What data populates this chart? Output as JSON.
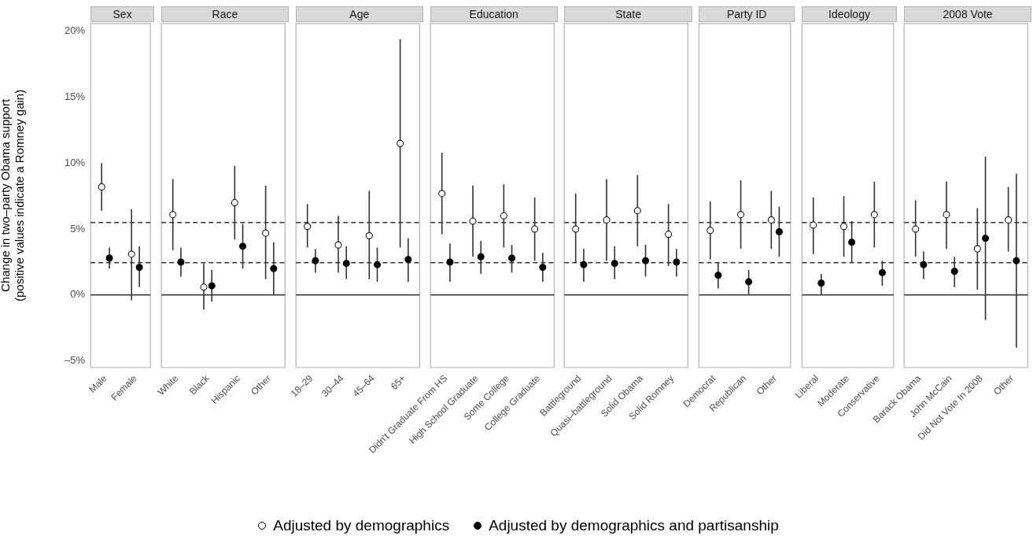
{
  "chart_data": [
    {
      "type": "scatter",
      "title": "Sex",
      "ylabel": "Change in two–party Obama support\n(positive values indicate a Romney gain)",
      "categories": [
        "Male",
        "Female"
      ],
      "marker": "circle",
      "legend": "bottom",
      "ylim": [
        -5.5,
        20.6
      ],
      "yticks": [
        {
          "value": -5,
          "label": "–5%"
        },
        {
          "value": 0,
          "label": "0%"
        },
        {
          "value": 5,
          "label": "5%"
        },
        {
          "value": 10,
          "label": "10%"
        },
        {
          "value": 15,
          "label": "15%"
        },
        {
          "value": 20,
          "label": "20%"
        }
      ],
      "ref_lines": [
        {
          "axis": "y",
          "value": 0,
          "line_style": "solid"
        },
        {
          "axis": "y",
          "value": 5.5,
          "line_style": "dashed"
        },
        {
          "axis": "y",
          "value": 2.45,
          "line_style": "dashed"
        }
      ],
      "series": [
        {
          "name": "Adjusted by demographics",
          "color": "#ffffff",
          "values": [
            8.2,
            3.1
          ],
          "errors": [
            [
              6.4,
              10.0
            ],
            [
              -0.4,
              6.5
            ]
          ]
        },
        {
          "name": "Adjusted by demographics and partisanship",
          "color": "#000000",
          "values": [
            2.8,
            2.1
          ],
          "errors": [
            [
              2.0,
              3.6
            ],
            [
              0.6,
              3.7
            ]
          ]
        }
      ]
    },
    {
      "type": "scatter",
      "title": "Race",
      "categories": [
        "White",
        "Black",
        "Hispanic",
        "Other"
      ],
      "marker": "circle",
      "tick_labels": "x",
      "ylim": [
        -5.5,
        20.6
      ],
      "ref_lines": [
        {
          "axis": "y",
          "value": 0,
          "line_style": "solid"
        },
        {
          "axis": "y",
          "value": 5.5,
          "line_style": "dashed"
        },
        {
          "axis": "y",
          "value": 2.45,
          "line_style": "dashed"
        }
      ],
      "series": [
        {
          "color": "#ffffff",
          "values": [
            6.1,
            0.6,
            7.0,
            4.7
          ],
          "errors": [
            [
              3.4,
              8.8
            ],
            [
              -1.1,
              2.4
            ],
            [
              4.2,
              9.8
            ],
            [
              1.2,
              8.3
            ]
          ]
        },
        {
          "color": "#000000",
          "values": [
            2.5,
            0.7,
            3.7,
            2.0
          ],
          "errors": [
            [
              1.4,
              3.6
            ],
            [
              -0.5,
              1.9
            ],
            [
              2.0,
              5.4
            ],
            [
              0,
              4.0
            ]
          ]
        }
      ]
    },
    {
      "type": "scatter",
      "title": "Age",
      "categories": [
        "18–29",
        "30–44",
        "45–64",
        "65+"
      ],
      "marker": "circle",
      "tick_labels": "x",
      "ylim": [
        -5.5,
        20.6
      ],
      "ref_lines": [
        {
          "axis": "y",
          "value": 0,
          "line_style": "solid"
        },
        {
          "axis": "y",
          "value": 5.5,
          "line_style": "dashed"
        },
        {
          "axis": "y",
          "value": 2.45,
          "line_style": "dashed"
        }
      ],
      "series": [
        {
          "color": "#ffffff",
          "values": [
            5.2,
            3.8,
            4.5,
            11.5
          ],
          "errors": [
            [
              3.6,
              6.9
            ],
            [
              1.7,
              6.0
            ],
            [
              1.2,
              7.9
            ],
            [
              3.6,
              19.4
            ]
          ]
        },
        {
          "color": "#000000",
          "values": [
            2.6,
            2.4,
            2.3,
            2.7
          ],
          "errors": [
            [
              1.7,
              3.5
            ],
            [
              1.2,
              3.7
            ],
            [
              1.0,
              3.6
            ],
            [
              1.0,
              4.3
            ]
          ]
        }
      ]
    },
    {
      "type": "scatter",
      "title": "Education",
      "categories": [
        "Didn't Graduate From HS",
        "High School Graduate",
        "Some College",
        "College Graduate"
      ],
      "marker": "circle",
      "tick_labels": "x",
      "ylim": [
        -5.5,
        20.6
      ],
      "ref_lines": [
        {
          "axis": "y",
          "value": 0,
          "line_style": "solid"
        },
        {
          "axis": "y",
          "value": 5.5,
          "line_style": "dashed"
        },
        {
          "axis": "y",
          "value": 2.45,
          "line_style": "dashed"
        }
      ],
      "series": [
        {
          "color": "#ffffff",
          "values": [
            7.7,
            5.6,
            6.0,
            5.0
          ],
          "errors": [
            [
              4.6,
              10.8
            ],
            [
              2.9,
              8.3
            ],
            [
              3.6,
              8.4
            ],
            [
              2.6,
              7.4
            ]
          ]
        },
        {
          "color": "#000000",
          "values": [
            2.5,
            2.9,
            2.8,
            2.1
          ],
          "errors": [
            [
              1.0,
              3.9
            ],
            [
              1.6,
              4.1
            ],
            [
              1.7,
              3.8
            ],
            [
              1.0,
              3.2
            ]
          ]
        }
      ]
    },
    {
      "type": "scatter",
      "title": "State",
      "categories": [
        "Battleground",
        "Quasi–battleground",
        "Solid Obama",
        "Solid Romney"
      ],
      "marker": "circle",
      "tick_labels": "x",
      "ylim": [
        -5.5,
        20.6
      ],
      "ref_lines": [
        {
          "axis": "y",
          "value": 0,
          "line_style": "solid"
        },
        {
          "axis": "y",
          "value": 5.5,
          "line_style": "dashed"
        },
        {
          "axis": "y",
          "value": 2.45,
          "line_style": "dashed"
        }
      ],
      "series": [
        {
          "color": "#ffffff",
          "values": [
            5.0,
            5.7,
            6.4,
            4.6
          ],
          "errors": [
            [
              2.5,
              7.7
            ],
            [
              2.6,
              8.8
            ],
            [
              3.7,
              9.1
            ],
            [
              2.2,
              6.9
            ]
          ]
        },
        {
          "color": "#000000",
          "values": [
            2.3,
            2.4,
            2.6,
            2.5
          ],
          "errors": [
            [
              1.0,
              3.5
            ],
            [
              1.2,
              3.7
            ],
            [
              1.4,
              3.8
            ],
            [
              1.4,
              3.5
            ]
          ]
        }
      ]
    },
    {
      "type": "scatter",
      "title": "Party ID",
      "categories": [
        "Democrat",
        "Republican",
        "Other"
      ],
      "marker": "circle",
      "tick_labels": "x",
      "ylim": [
        -5.5,
        20.6
      ],
      "ref_lines": [
        {
          "axis": "y",
          "value": 0,
          "line_style": "solid"
        },
        {
          "axis": "y",
          "value": 5.5,
          "line_style": "dashed"
        },
        {
          "axis": "y",
          "value": 2.45,
          "line_style": "dashed"
        }
      ],
      "series": [
        {
          "color": "#ffffff",
          "values": [
            4.9,
            6.1,
            5.7
          ],
          "errors": [
            [
              2.7,
              7.1
            ],
            [
              3.5,
              8.7
            ],
            [
              3.5,
              7.9
            ]
          ]
        },
        {
          "color": "#000000",
          "values": [
            1.5,
            1.0,
            4.8
          ],
          "errors": [
            [
              0.5,
              2.5
            ],
            [
              0,
              1.9
            ],
            [
              2.9,
              6.7
            ]
          ]
        }
      ]
    },
    {
      "type": "scatter",
      "title": "Ideology",
      "categories": [
        "Liberal",
        "Moderate",
        "Conservative"
      ],
      "marker": "circle",
      "tick_labels": "x",
      "ylim": [
        -5.5,
        20.6
      ],
      "ref_lines": [
        {
          "axis": "y",
          "value": 0,
          "line_style": "solid"
        },
        {
          "axis": "y",
          "value": 5.5,
          "line_style": "dashed"
        },
        {
          "axis": "y",
          "value": 2.45,
          "line_style": "dashed"
        }
      ],
      "series": [
        {
          "color": "#ffffff",
          "values": [
            5.3,
            5.2,
            6.1
          ],
          "errors": [
            [
              3.1,
              7.4
            ],
            [
              2.9,
              7.5
            ],
            [
              3.6,
              8.6
            ]
          ]
        },
        {
          "color": "#000000",
          "values": [
            0.9,
            4.0,
            1.7
          ],
          "errors": [
            [
              0,
              1.6
            ],
            [
              2.5,
              5.6
            ],
            [
              0.7,
              2.6
            ]
          ]
        }
      ]
    },
    {
      "type": "scatter",
      "title": "2008 Vote",
      "categories": [
        "Barack Obama",
        "John McCain",
        "Did Not Vote In 2008",
        "Other"
      ],
      "marker": "circle",
      "tick_labels": "x",
      "ylim": [
        -5.5,
        20.6
      ],
      "ref_lines": [
        {
          "axis": "y",
          "value": 0,
          "line_style": "solid"
        },
        {
          "axis": "y",
          "value": 5.5,
          "line_style": "dashed"
        },
        {
          "axis": "y",
          "value": 2.45,
          "line_style": "dashed"
        }
      ],
      "series": [
        {
          "color": "#ffffff",
          "values": [
            5.0,
            6.1,
            3.5,
            5.7
          ],
          "errors": [
            [
              2.9,
              7.2
            ],
            [
              3.5,
              8.6
            ],
            [
              0.4,
              6.6
            ],
            [
              3.3,
              8.2
            ]
          ]
        },
        {
          "color": "#000000",
          "values": [
            2.3,
            1.8,
            4.3,
            2.6
          ],
          "errors": [
            [
              1.2,
              3.3
            ],
            [
              0.6,
              2.9
            ],
            [
              -1.9,
              10.5
            ],
            [
              -4.0,
              9.2
            ]
          ]
        }
      ]
    }
  ]
}
